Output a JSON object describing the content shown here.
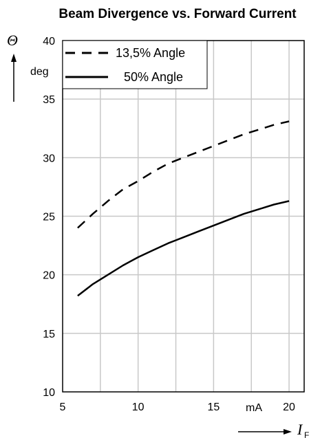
{
  "chart_data": {
    "type": "line",
    "title": "Beam Divergence vs. Forward Current",
    "x_symbol": "I",
    "x_symbol_sub": "F",
    "x_unit": "mA",
    "y_symbol": "Θ",
    "y_unit": "deg",
    "xlim": [
      5,
      21
    ],
    "ylim": [
      10,
      40
    ],
    "x_ticks": [
      5,
      10,
      15,
      20
    ],
    "y_ticks": [
      10,
      15,
      20,
      25,
      30,
      35,
      40
    ],
    "grid": true,
    "legend_position": "top-left",
    "series": [
      {
        "name": "13,5% Angle",
        "style": "dashed",
        "color": "#000000",
        "x": [
          6,
          7,
          8,
          9,
          10,
          11,
          12,
          13,
          14,
          15,
          16,
          17,
          18,
          19,
          20
        ],
        "y": [
          24.0,
          25.2,
          26.3,
          27.3,
          28.0,
          28.8,
          29.5,
          30.0,
          30.5,
          31.0,
          31.5,
          32.0,
          32.4,
          32.8,
          33.1
        ]
      },
      {
        "name": "50% Angle",
        "style": "solid",
        "color": "#000000",
        "x": [
          6,
          7,
          8,
          9,
          10,
          11,
          12,
          13,
          14,
          15,
          16,
          17,
          18,
          19,
          20
        ],
        "y": [
          18.2,
          19.2,
          20.0,
          20.8,
          21.5,
          22.1,
          22.7,
          23.2,
          23.7,
          24.2,
          24.7,
          25.2,
          25.6,
          26.0,
          26.3
        ]
      }
    ]
  }
}
